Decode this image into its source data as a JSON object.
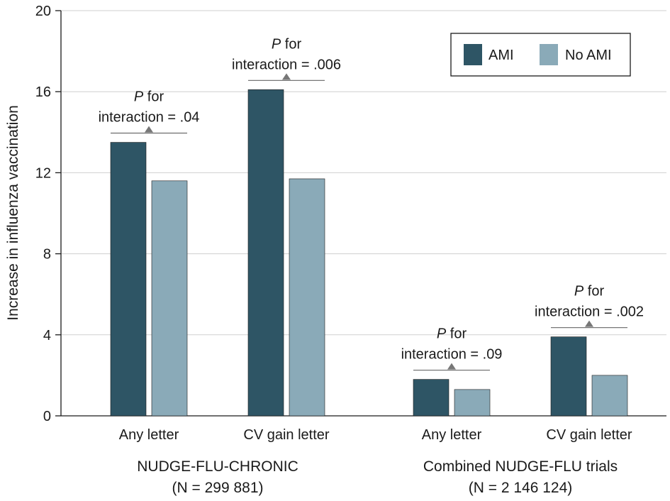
{
  "chart_data": {
    "type": "bar",
    "ylabel": "Increase in influenza vaccination",
    "xlabel": "",
    "ylim": [
      0,
      20
    ],
    "yticks": [
      0,
      4,
      8,
      12,
      16,
      20
    ],
    "grid": true,
    "legend_position": "top-right",
    "colors": {
      "AMI": "#2e5565",
      "No AMI": "#8aaab8"
    },
    "series_names": [
      "AMI",
      "No AMI"
    ],
    "categories": [
      "Any letter",
      "CV gain letter",
      "Any letter",
      "CV gain letter"
    ],
    "groups": [
      {
        "name": "NUDGE-FLU-CHRONIC",
        "subtitle": "(N = 299 881)",
        "categories": [
          {
            "label": "Any letter",
            "values": [
              13.5,
              11.6
            ],
            "annotation": {
              "line1_italic": "P",
              "line1_rest": " for",
              "line2": "interaction = .04"
            }
          },
          {
            "label": "CV gain letter",
            "values": [
              16.1,
              11.7
            ],
            "annotation": {
              "line1_italic": "P",
              "line1_rest": " for",
              "line2": "interaction = .006"
            }
          }
        ]
      },
      {
        "name": "Combined NUDGE-FLU trials",
        "subtitle": "(N = 2 146 124)",
        "categories": [
          {
            "label": "Any letter",
            "values": [
              1.8,
              1.3
            ],
            "annotation": {
              "line1_italic": "P",
              "line1_rest": " for",
              "line2": "interaction = .09"
            }
          },
          {
            "label": "CV gain letter",
            "values": [
              3.9,
              2.0
            ],
            "annotation": {
              "line1_italic": "P",
              "line1_rest": " for",
              "line2": "interaction = .002"
            }
          }
        ]
      }
    ]
  }
}
